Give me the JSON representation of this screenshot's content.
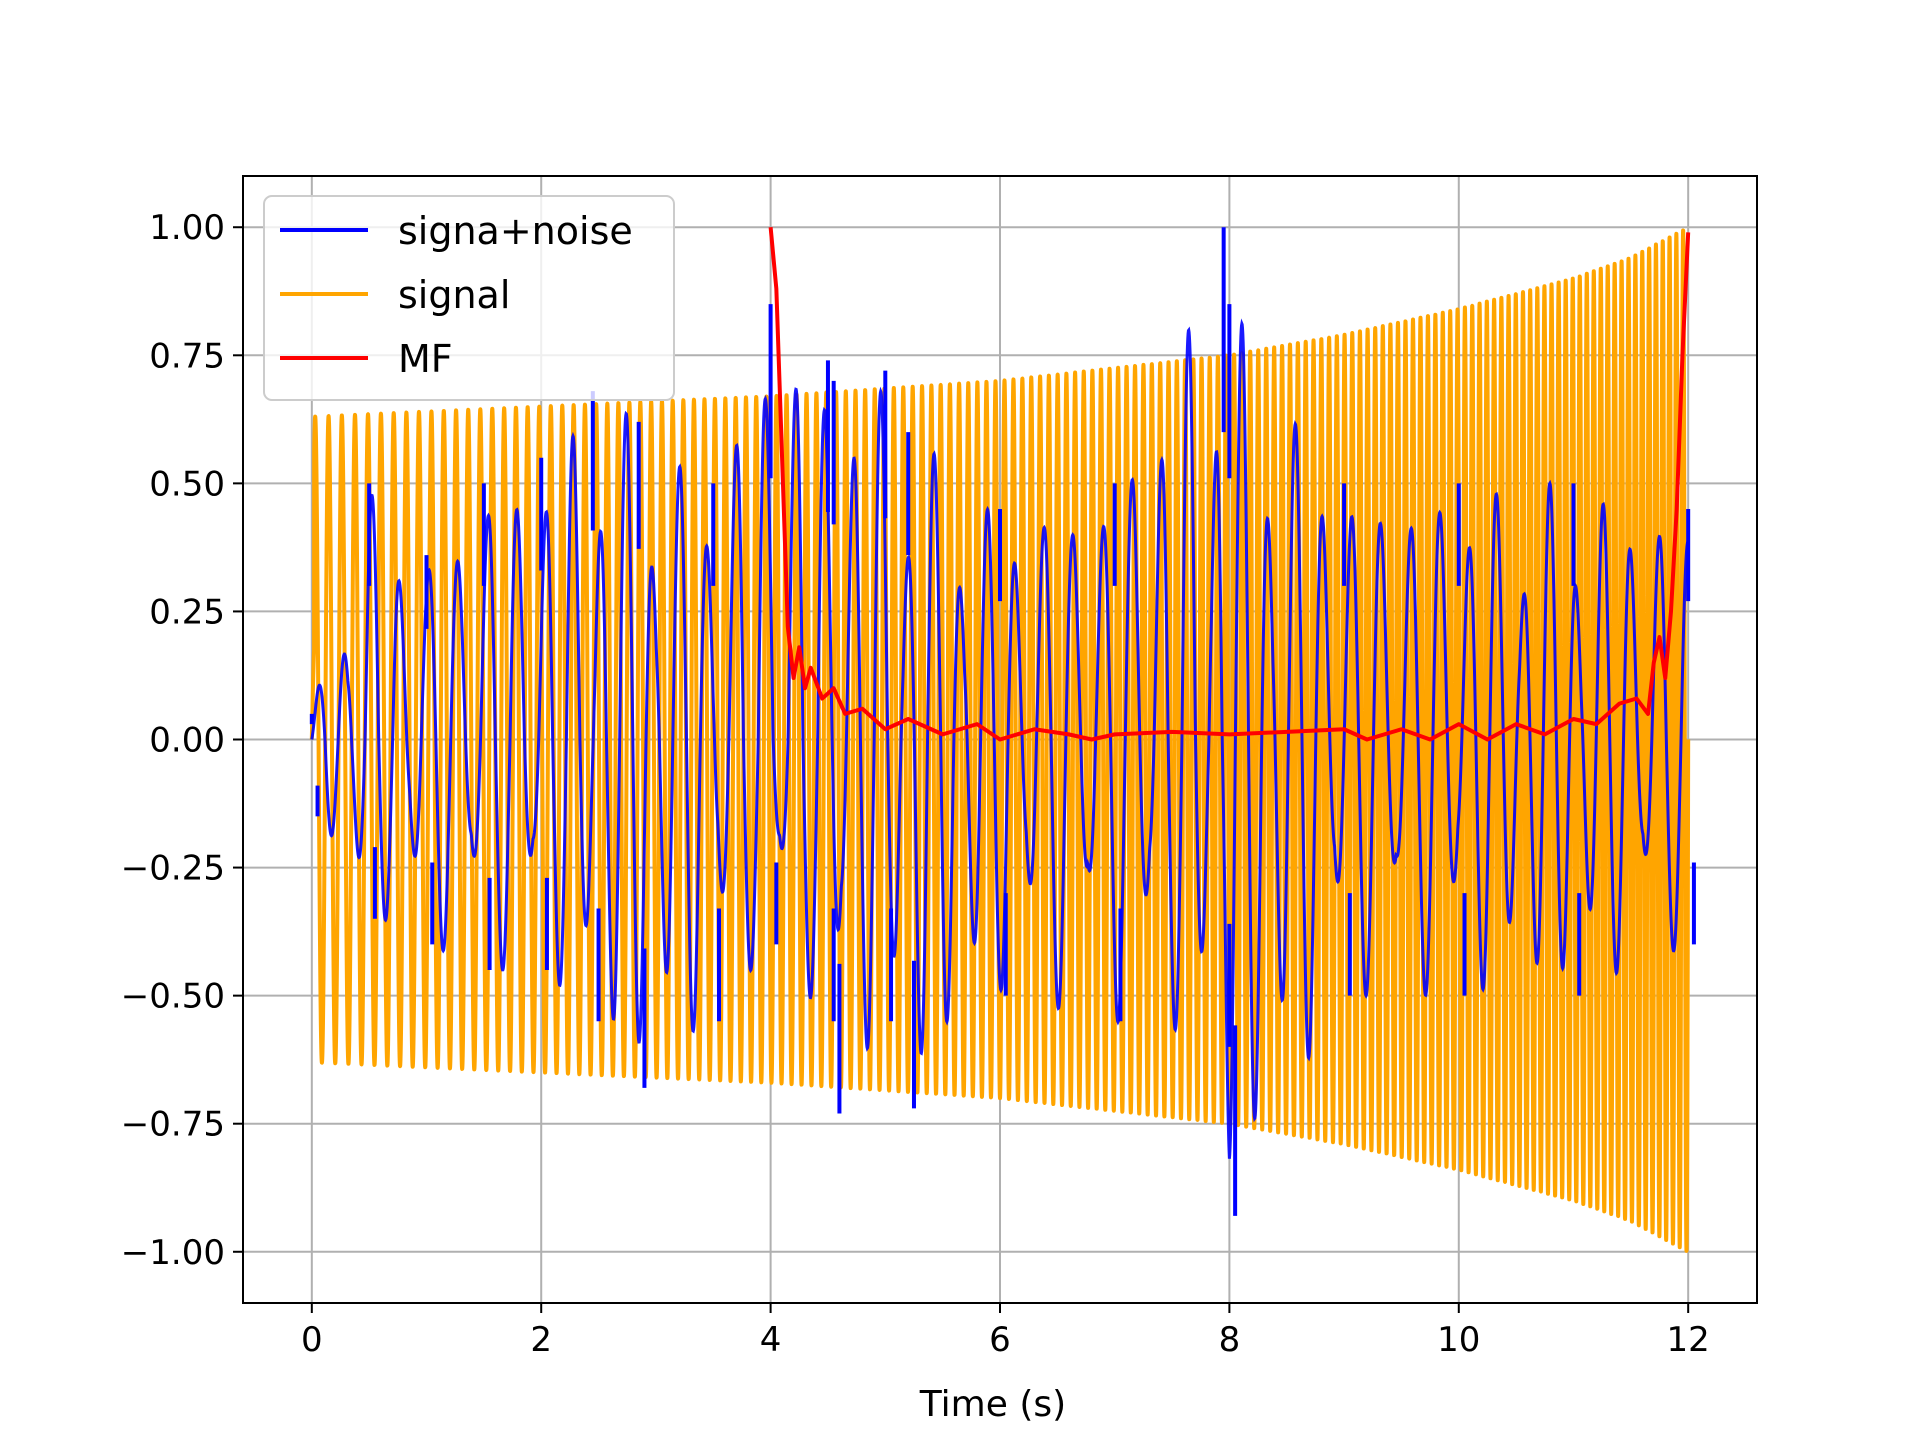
{
  "chart_data": {
    "type": "line",
    "title": "",
    "xlabel": "Time (s)",
    "ylabel": "",
    "xlim": [
      -0.6,
      12.6
    ],
    "ylim": [
      -1.1,
      1.1
    ],
    "x_ticks": [
      0,
      2,
      4,
      6,
      8,
      10,
      12
    ],
    "x_tick_labels": [
      "0",
      "2",
      "4",
      "6",
      "8",
      "10",
      "12"
    ],
    "y_ticks": [
      1.0,
      0.75,
      0.5,
      0.25,
      0.0,
      -0.25,
      -0.5,
      -0.75,
      -1.0
    ],
    "y_tick_labels": [
      "1.00",
      "0.75",
      "0.50",
      "0.25",
      "0.00",
      "−0.25",
      "−0.50",
      "−0.75",
      "−1.00"
    ],
    "grid": true,
    "legend_position": "upper-left",
    "series": [
      {
        "name": "signa+noise",
        "color": "#0000ff",
        "description_points": {
          "x": [
            0,
            0.5,
            1.0,
            1.5,
            2.0,
            2.45,
            2.85,
            3.5,
            4.0,
            4.5,
            4.55,
            5.0,
            5.2,
            6.0,
            7.0,
            7.95,
            8.0,
            9.0,
            10.0,
            11.0,
            12.0
          ],
          "y_peak": [
            0.05,
            0.5,
            0.36,
            0.5,
            0.55,
            0.68,
            0.62,
            0.5,
            0.85,
            0.74,
            0.7,
            0.72,
            0.6,
            0.45,
            0.5,
            1.0,
            0.85,
            0.5,
            0.5,
            0.5,
            0.45
          ],
          "y_trough": [
            -0.15,
            -0.35,
            -0.4,
            -0.45,
            -0.45,
            -0.55,
            -0.68,
            -0.55,
            -0.4,
            -0.55,
            -0.73,
            -0.55,
            -0.72,
            -0.5,
            -0.55,
            -0.6,
            -0.93,
            -0.5,
            -0.5,
            -0.5,
            -0.4
          ]
        }
      },
      {
        "name": "signal",
        "color": "#ffa500",
        "envelope": {
          "x": [
            0,
            2,
            4,
            6,
            8,
            9,
            10,
            11,
            11.5,
            12
          ],
          "amplitude": [
            0.63,
            0.65,
            0.67,
            0.7,
            0.75,
            0.79,
            0.84,
            0.9,
            0.94,
            1.0
          ]
        }
      },
      {
        "name": "MF",
        "color": "#ff0000",
        "x": [
          4.0,
          4.05,
          4.1,
          4.15,
          4.2,
          4.25,
          4.3,
          4.35,
          4.45,
          4.55,
          4.65,
          4.8,
          5.0,
          5.2,
          5.5,
          5.8,
          6.0,
          6.3,
          6.6,
          6.8,
          7.0,
          7.5,
          8.0,
          8.5,
          9.0,
          9.2,
          9.5,
          9.75,
          10.0,
          10.25,
          10.5,
          10.75,
          11.0,
          11.2,
          11.4,
          11.55,
          11.65,
          11.7,
          11.75,
          11.8,
          11.85,
          11.9,
          11.95,
          12.0
        ],
        "y": [
          1.0,
          0.88,
          0.55,
          0.22,
          0.12,
          0.18,
          0.1,
          0.14,
          0.08,
          0.1,
          0.05,
          0.06,
          0.02,
          0.04,
          0.01,
          0.03,
          0.0,
          0.02,
          0.01,
          0.0,
          0.01,
          0.015,
          0.01,
          0.015,
          0.02,
          0.0,
          0.02,
          0.0,
          0.03,
          0.0,
          0.03,
          0.01,
          0.04,
          0.03,
          0.07,
          0.08,
          0.05,
          0.15,
          0.2,
          0.12,
          0.25,
          0.45,
          0.75,
          0.99
        ]
      }
    ]
  },
  "legend": {
    "entries": [
      {
        "label": "signa+noise",
        "color": "#0000ff"
      },
      {
        "label": "signal",
        "color": "#ffa500"
      },
      {
        "label": "MF",
        "color": "#ff0000"
      }
    ]
  },
  "colors": {
    "grid": "#b0b0b0",
    "axes": "#000000",
    "background": "#ffffff"
  }
}
